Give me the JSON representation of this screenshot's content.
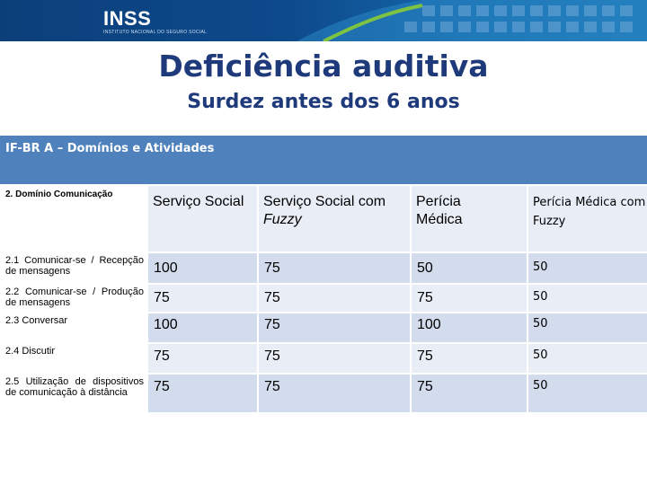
{
  "banner": {
    "logo": "INSS",
    "logo_sub": "INSTITUTO NACIONAL DO SEGURO SOCIAL"
  },
  "title": "Deficiência auditiva",
  "subtitle": "Surdez antes dos 6 anos",
  "section": "IF-BR A – Domínios e Atividades",
  "table": {
    "domain_header": "2. Domínio Comunicação",
    "columns": [
      {
        "text": "Serviço Social",
        "italic": ""
      },
      {
        "text": "Serviço Social com ",
        "italic": "Fuzzy"
      },
      {
        "text": "Perícia Médica",
        "italic": ""
      },
      {
        "text": "Perícia Médica com Fuzzy",
        "italic": ""
      }
    ],
    "rows": [
      {
        "activity": "2.1 Comunicar-se / Recepção de mensagens",
        "values": [
          "100",
          "75",
          "50",
          "50"
        ]
      },
      {
        "activity": "2.2 Comunicar-se / Produção de mensagens",
        "values": [
          "75",
          "75",
          "75",
          "50"
        ]
      },
      {
        "activity": "2.3 Conversar",
        "values": [
          "100",
          "75",
          "100",
          "50"
        ]
      },
      {
        "activity": "2.4 Discutir",
        "values": [
          "75",
          "75",
          "75",
          "50"
        ]
      },
      {
        "activity": "2.5 Utilização de dispositivos de comunicação à distância",
        "values": [
          "75",
          "75",
          "75",
          "50"
        ]
      }
    ]
  },
  "colors": {
    "banner": "#0d4a8c",
    "title": "#1f3a7a",
    "section_bar": "#4f81bd",
    "row_dark": "#d3dcec",
    "row_light": "#e9eef6"
  }
}
